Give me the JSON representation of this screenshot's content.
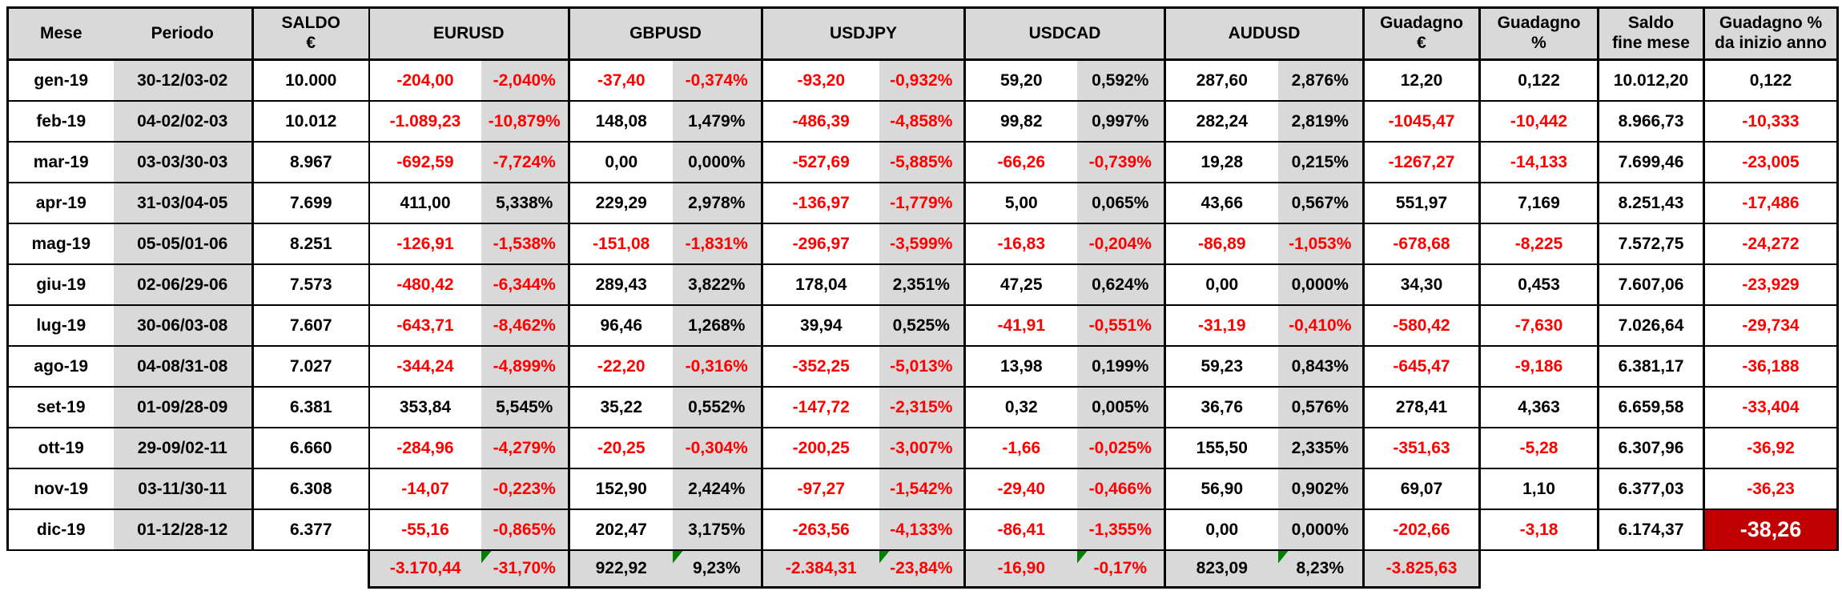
{
  "table": {
    "header_cells": [
      {
        "key": "mese",
        "label": "Mese",
        "span": 1
      },
      {
        "key": "periodo",
        "label": "Periodo",
        "span": 1
      },
      {
        "key": "saldo",
        "label": "SALDO\n€",
        "span": 1
      },
      {
        "key": "eurusd",
        "label": "EURUSD",
        "span": 2
      },
      {
        "key": "gbpusd",
        "label": "GBPUSD",
        "span": 2
      },
      {
        "key": "usdjpy",
        "label": "USDJPY",
        "span": 2
      },
      {
        "key": "usdcad",
        "label": "USDCAD",
        "span": 2
      },
      {
        "key": "audusd",
        "label": "AUDUSD",
        "span": 2
      },
      {
        "key": "guadagno-eur",
        "label": "Guadagno\n€",
        "span": 1
      },
      {
        "key": "guadagno-pct",
        "label": "Guadagno\n%",
        "span": 1
      },
      {
        "key": "saldo-fine-mese",
        "label": "Saldo\nfine mese",
        "span": 1
      },
      {
        "key": "guadagno-pct-anno",
        "label": "Guadagno %\nda inizio anno",
        "span": 1
      }
    ],
    "column_keys": [
      "mese",
      "periodo",
      "saldo",
      "eurusd-val",
      "eurusd-pct",
      "gbpusd-val",
      "gbpusd-pct",
      "usdjpy-val",
      "usdjpy-pct",
      "usdcad-val",
      "usdcad-pct",
      "audusd-val",
      "audusd-pct",
      "guadagno-eur",
      "guadagno-pct",
      "saldo-fine-mese",
      "guadagno-pct-anno"
    ],
    "rows": [
      [
        "gen-19",
        "30-12/03-02",
        "10.000",
        "-204,00",
        "-2,040%",
        "-37,40",
        "-0,374%",
        "-93,20",
        "-0,932%",
        "59,20",
        "0,592%",
        "287,60",
        "2,876%",
        "12,20",
        "0,122",
        "10.012,20",
        "0,122"
      ],
      [
        "feb-19",
        "04-02/02-03",
        "10.012",
        "-1.089,23",
        "-10,879%",
        "148,08",
        "1,479%",
        "-486,39",
        "-4,858%",
        "99,82",
        "0,997%",
        "282,24",
        "2,819%",
        "-1045,47",
        "-10,442",
        "8.966,73",
        "-10,333"
      ],
      [
        "mar-19",
        "03-03/30-03",
        "8.967",
        "-692,59",
        "-7,724%",
        "0,00",
        "0,000%",
        "-527,69",
        "-5,885%",
        "-66,26",
        "-0,739%",
        "19,28",
        "0,215%",
        "-1267,27",
        "-14,133",
        "7.699,46",
        "-23,005"
      ],
      [
        "apr-19",
        "31-03/04-05",
        "7.699",
        "411,00",
        "5,338%",
        "229,29",
        "2,978%",
        "-136,97",
        "-1,779%",
        "5,00",
        "0,065%",
        "43,66",
        "0,567%",
        "551,97",
        "7,169",
        "8.251,43",
        "-17,486"
      ],
      [
        "mag-19",
        "05-05/01-06",
        "8.251",
        "-126,91",
        "-1,538%",
        "-151,08",
        "-1,831%",
        "-296,97",
        "-3,599%",
        "-16,83",
        "-0,204%",
        "-86,89",
        "-1,053%",
        "-678,68",
        "-8,225",
        "7.572,75",
        "-24,272"
      ],
      [
        "giu-19",
        "02-06/29-06",
        "7.573",
        "-480,42",
        "-6,344%",
        "289,43",
        "3,822%",
        "178,04",
        "2,351%",
        "47,25",
        "0,624%",
        "0,00",
        "0,000%",
        "34,30",
        "0,453",
        "7.607,06",
        "-23,929"
      ],
      [
        "lug-19",
        "30-06/03-08",
        "7.607",
        "-643,71",
        "-8,462%",
        "96,46",
        "1,268%",
        "39,94",
        "0,525%",
        "-41,91",
        "-0,551%",
        "-31,19",
        "-0,410%",
        "-580,42",
        "-7,630",
        "7.026,64",
        "-29,734"
      ],
      [
        "ago-19",
        "04-08/31-08",
        "7.027",
        "-344,24",
        "-4,899%",
        "-22,20",
        "-0,316%",
        "-352,25",
        "-5,013%",
        "13,98",
        "0,199%",
        "59,23",
        "0,843%",
        "-645,47",
        "-9,186",
        "6.381,17",
        "-36,188"
      ],
      [
        "set-19",
        "01-09/28-09",
        "6.381",
        "353,84",
        "5,545%",
        "35,22",
        "0,552%",
        "-147,72",
        "-2,315%",
        "0,32",
        "0,005%",
        "36,76",
        "0,576%",
        "278,41",
        "4,363",
        "6.659,58",
        "-33,404"
      ],
      [
        "ott-19",
        "29-09/02-11",
        "6.660",
        "-284,96",
        "-4,279%",
        "-20,25",
        "-0,304%",
        "-200,25",
        "-3,007%",
        "-1,66",
        "-0,025%",
        "155,50",
        "2,335%",
        "-351,63",
        "-5,28",
        "6.307,96",
        "-36,92"
      ],
      [
        "nov-19",
        "03-11/30-11",
        "6.308",
        "-14,07",
        "-0,223%",
        "152,90",
        "2,424%",
        "-97,27",
        "-1,542%",
        "-29,40",
        "-0,466%",
        "56,90",
        "0,902%",
        "69,07",
        "1,10",
        "6.377,03",
        "-36,23"
      ],
      [
        "dic-19",
        "01-12/28-12",
        "6.377",
        "-55,16",
        "-0,865%",
        "202,47",
        "3,175%",
        "-263,56",
        "-4,133%",
        "-86,41",
        "-1,355%",
        "0,00",
        "0,000%",
        "-202,66",
        "-3,18",
        "6.174,37",
        "-38,26"
      ]
    ],
    "totals": {
      "start_col_index": 3,
      "values": [
        "-3.170,44",
        "-31,70%",
        "922,92",
        "9,23%",
        "-2.384,31",
        "-23,84%",
        "-16,90",
        "-0,17%",
        "823,09",
        "8,23%",
        "-3.825,63"
      ],
      "warning_triangle_value_indexes": [
        1,
        3,
        5,
        7,
        9
      ]
    },
    "highlight_cell": {
      "row_index": 11,
      "col_index": 16,
      "value": "-38,26"
    },
    "colors": {
      "negative_text": "#FF0000",
      "positive_text": "#000000",
      "shaded_cell": "#D9D9D9",
      "highlight_bg": "#C00000",
      "highlight_text": "#FFFFFF",
      "warning_triangle": "#008000",
      "border": "#000000"
    }
  }
}
